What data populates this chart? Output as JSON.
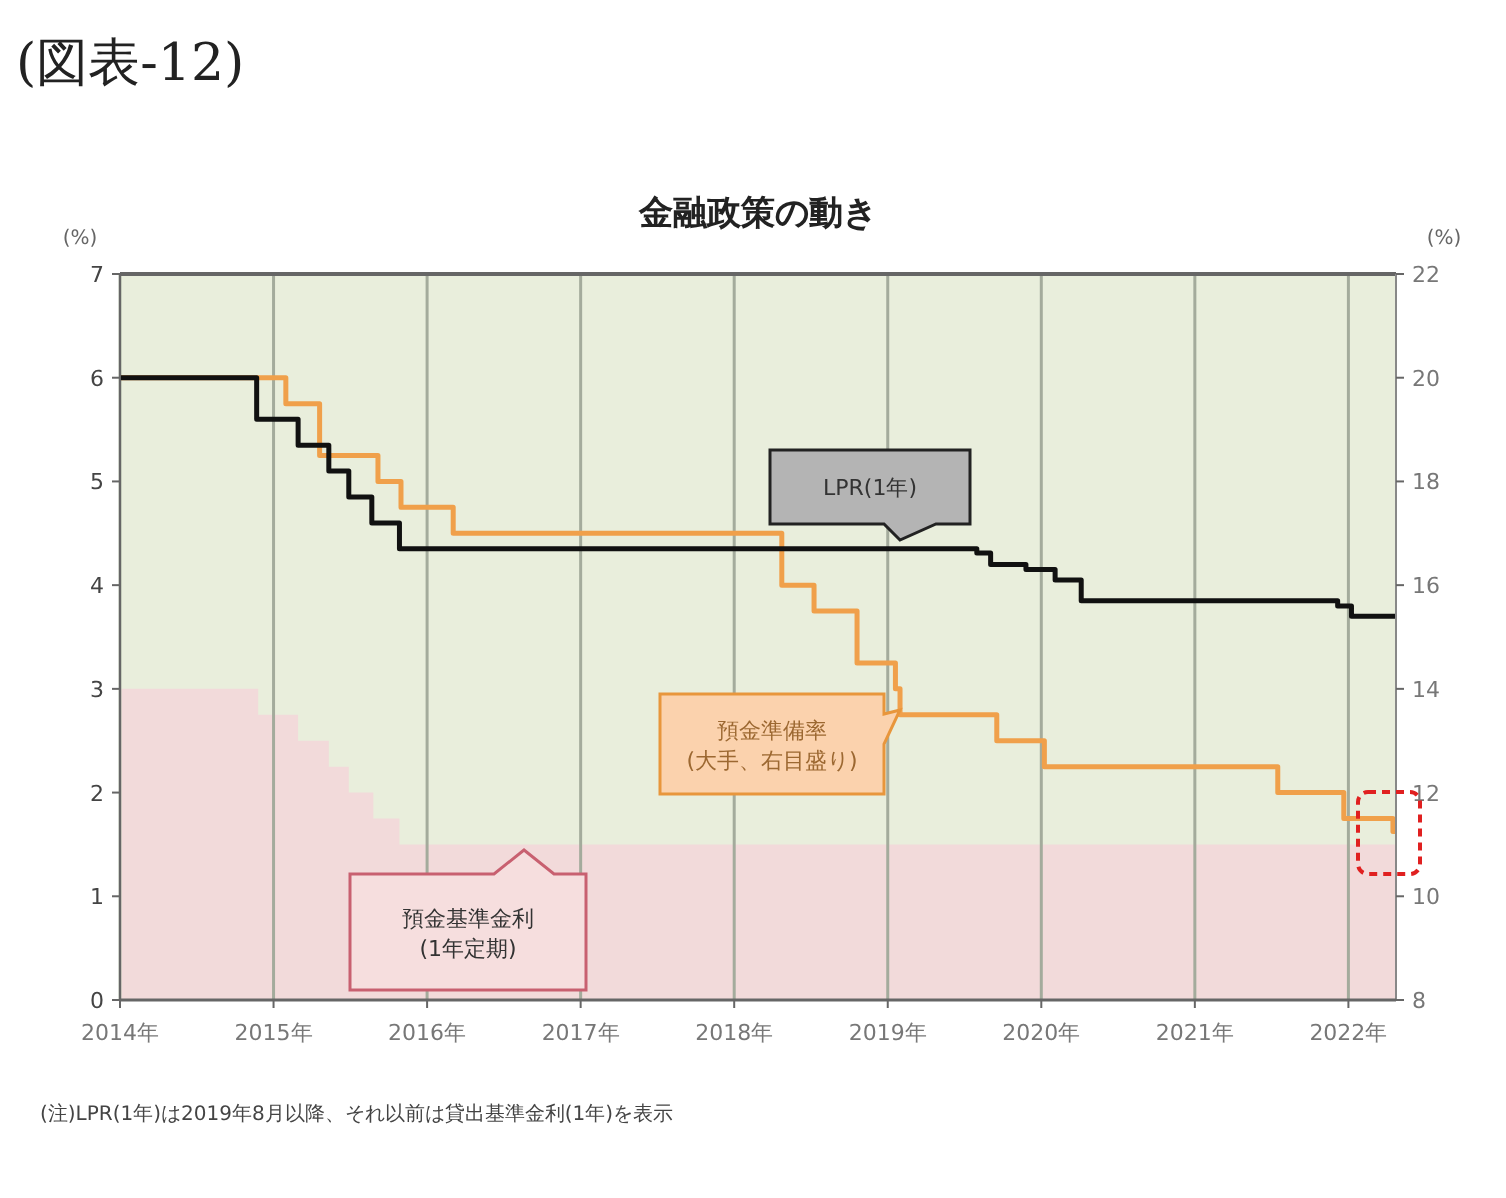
{
  "chart_data": {
    "type": "step",
    "title": "金融政策の動き",
    "ylabel": "(%)",
    "y2label": "(%)",
    "annotations": [
      "(図表-12)",
      "(注)LPR(1年)は2019年8月以降、それ以前は貸出基準金利(1年)を表示"
    ],
    "xlim": [
      2014,
      2022.31
    ],
    "xticks": [
      {
        "value": 2014,
        "label": "2014年"
      },
      {
        "value": 2015,
        "label": "2015年"
      },
      {
        "value": 2016,
        "label": "2016年"
      },
      {
        "value": 2017,
        "label": "2017年"
      },
      {
        "value": 2018,
        "label": "2018年"
      },
      {
        "value": 2019,
        "label": "2019年"
      },
      {
        "value": 2020,
        "label": "2020年"
      },
      {
        "value": 2021,
        "label": "2021年"
      },
      {
        "value": 2022,
        "label": "2022年"
      }
    ],
    "ylim": [
      0,
      7
    ],
    "yticks": [
      0,
      1,
      2,
      3,
      4,
      5,
      6,
      7
    ],
    "y2lim": [
      8,
      22
    ],
    "y2ticks": [
      8,
      10,
      12,
      14,
      16,
      18,
      20,
      22
    ],
    "grid": "x",
    "legend": false,
    "line_style": "solid",
    "marker": "none",
    "series": [
      {
        "name": "預金基準金利\n(1年定期)",
        "type": "area",
        "color": "#f2dada",
        "x": [
          2014,
          2014.9,
          2014.9,
          2015.16,
          2015.16,
          2015.36,
          2015.36,
          2015.49,
          2015.49,
          2015.65,
          2015.65,
          2015.82,
          2015.82,
          2022.31
        ],
        "values": [
          3,
          3,
          2.75,
          2.75,
          2.5,
          2.5,
          2.25,
          2.25,
          2,
          2,
          1.75,
          1.75,
          1.5,
          1.5
        ]
      },
      {
        "name": "預金準備率\n(大手、右目盛り)",
        "axis": "y2",
        "color": "#f0a04b",
        "x": [
          2014,
          2015.08,
          2015.3,
          2015.68,
          2015.83,
          2016.17,
          2018.31,
          2018.52,
          2018.8,
          2019.05,
          2019.08,
          2019.71,
          2020.02,
          2021.54,
          2021.97,
          2022.29,
          2022.31
        ],
        "values": [
          20,
          19.5,
          18.5,
          18,
          17.5,
          17,
          16,
          15.5,
          14.5,
          14,
          13.5,
          13,
          12.5,
          12,
          11.5,
          11.25,
          11.25
        ]
      },
      {
        "name": "LPR(1年)",
        "color": "#111111",
        "x": [
          2014,
          2014.89,
          2015.16,
          2015.36,
          2015.49,
          2015.64,
          2015.82,
          2019.58,
          2019.67,
          2019.9,
          2020.09,
          2020.26,
          2021.93,
          2022.02,
          2022.31
        ],
        "values": [
          6,
          5.6,
          5.35,
          5.1,
          4.85,
          4.6,
          4.35,
          4.31,
          4.2,
          4.15,
          4.05,
          3.85,
          3.8,
          3.7,
          3.7
        ]
      }
    ]
  }
}
